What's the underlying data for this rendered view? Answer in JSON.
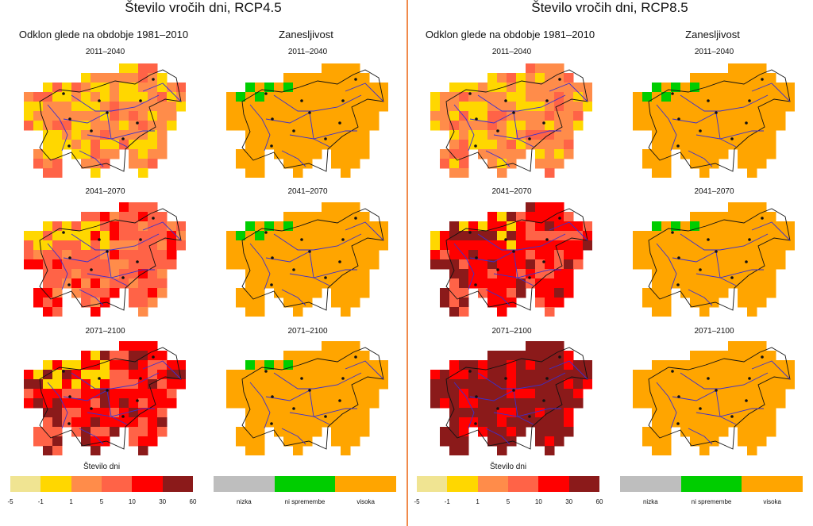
{
  "panels": [
    {
      "title": "Število vročih dni, RCP4.5",
      "left_heading": "Odklon glede na obdobje 1981–2010",
      "right_heading": "Zanesljivost",
      "periods": [
        "2011–2040",
        "2041–2070",
        "2071–2100"
      ],
      "deviation_dominant_class": [
        2,
        3,
        4
      ],
      "reliability_green_cells": [
        5,
        5,
        3
      ]
    },
    {
      "title": "Število vročih dni, RCP8.5",
      "left_heading": "Odklon glede na obdobje 1981–2010",
      "right_heading": "Zanesljivost",
      "periods": [
        "2011–2040",
        "2041–2070",
        "2071–2100"
      ],
      "deviation_dominant_class": [
        2,
        4,
        5
      ],
      "reliability_green_cells": [
        5,
        3,
        0
      ]
    }
  ],
  "legend_days": {
    "title": "Število dni",
    "ticks": [
      "-5",
      "-1",
      "1",
      "5",
      "10",
      "30",
      "60"
    ],
    "colors": [
      "#f0e492",
      "#ffd700",
      "#ff8c4a",
      "#ff6347",
      "#ff0000",
      "#8b1a1a"
    ]
  },
  "legend_reliability": {
    "labels": [
      "nizka",
      "ni spremembe",
      "visoka"
    ],
    "colors": [
      "#bebebe",
      "#00cd00",
      "#ffa500"
    ]
  }
}
